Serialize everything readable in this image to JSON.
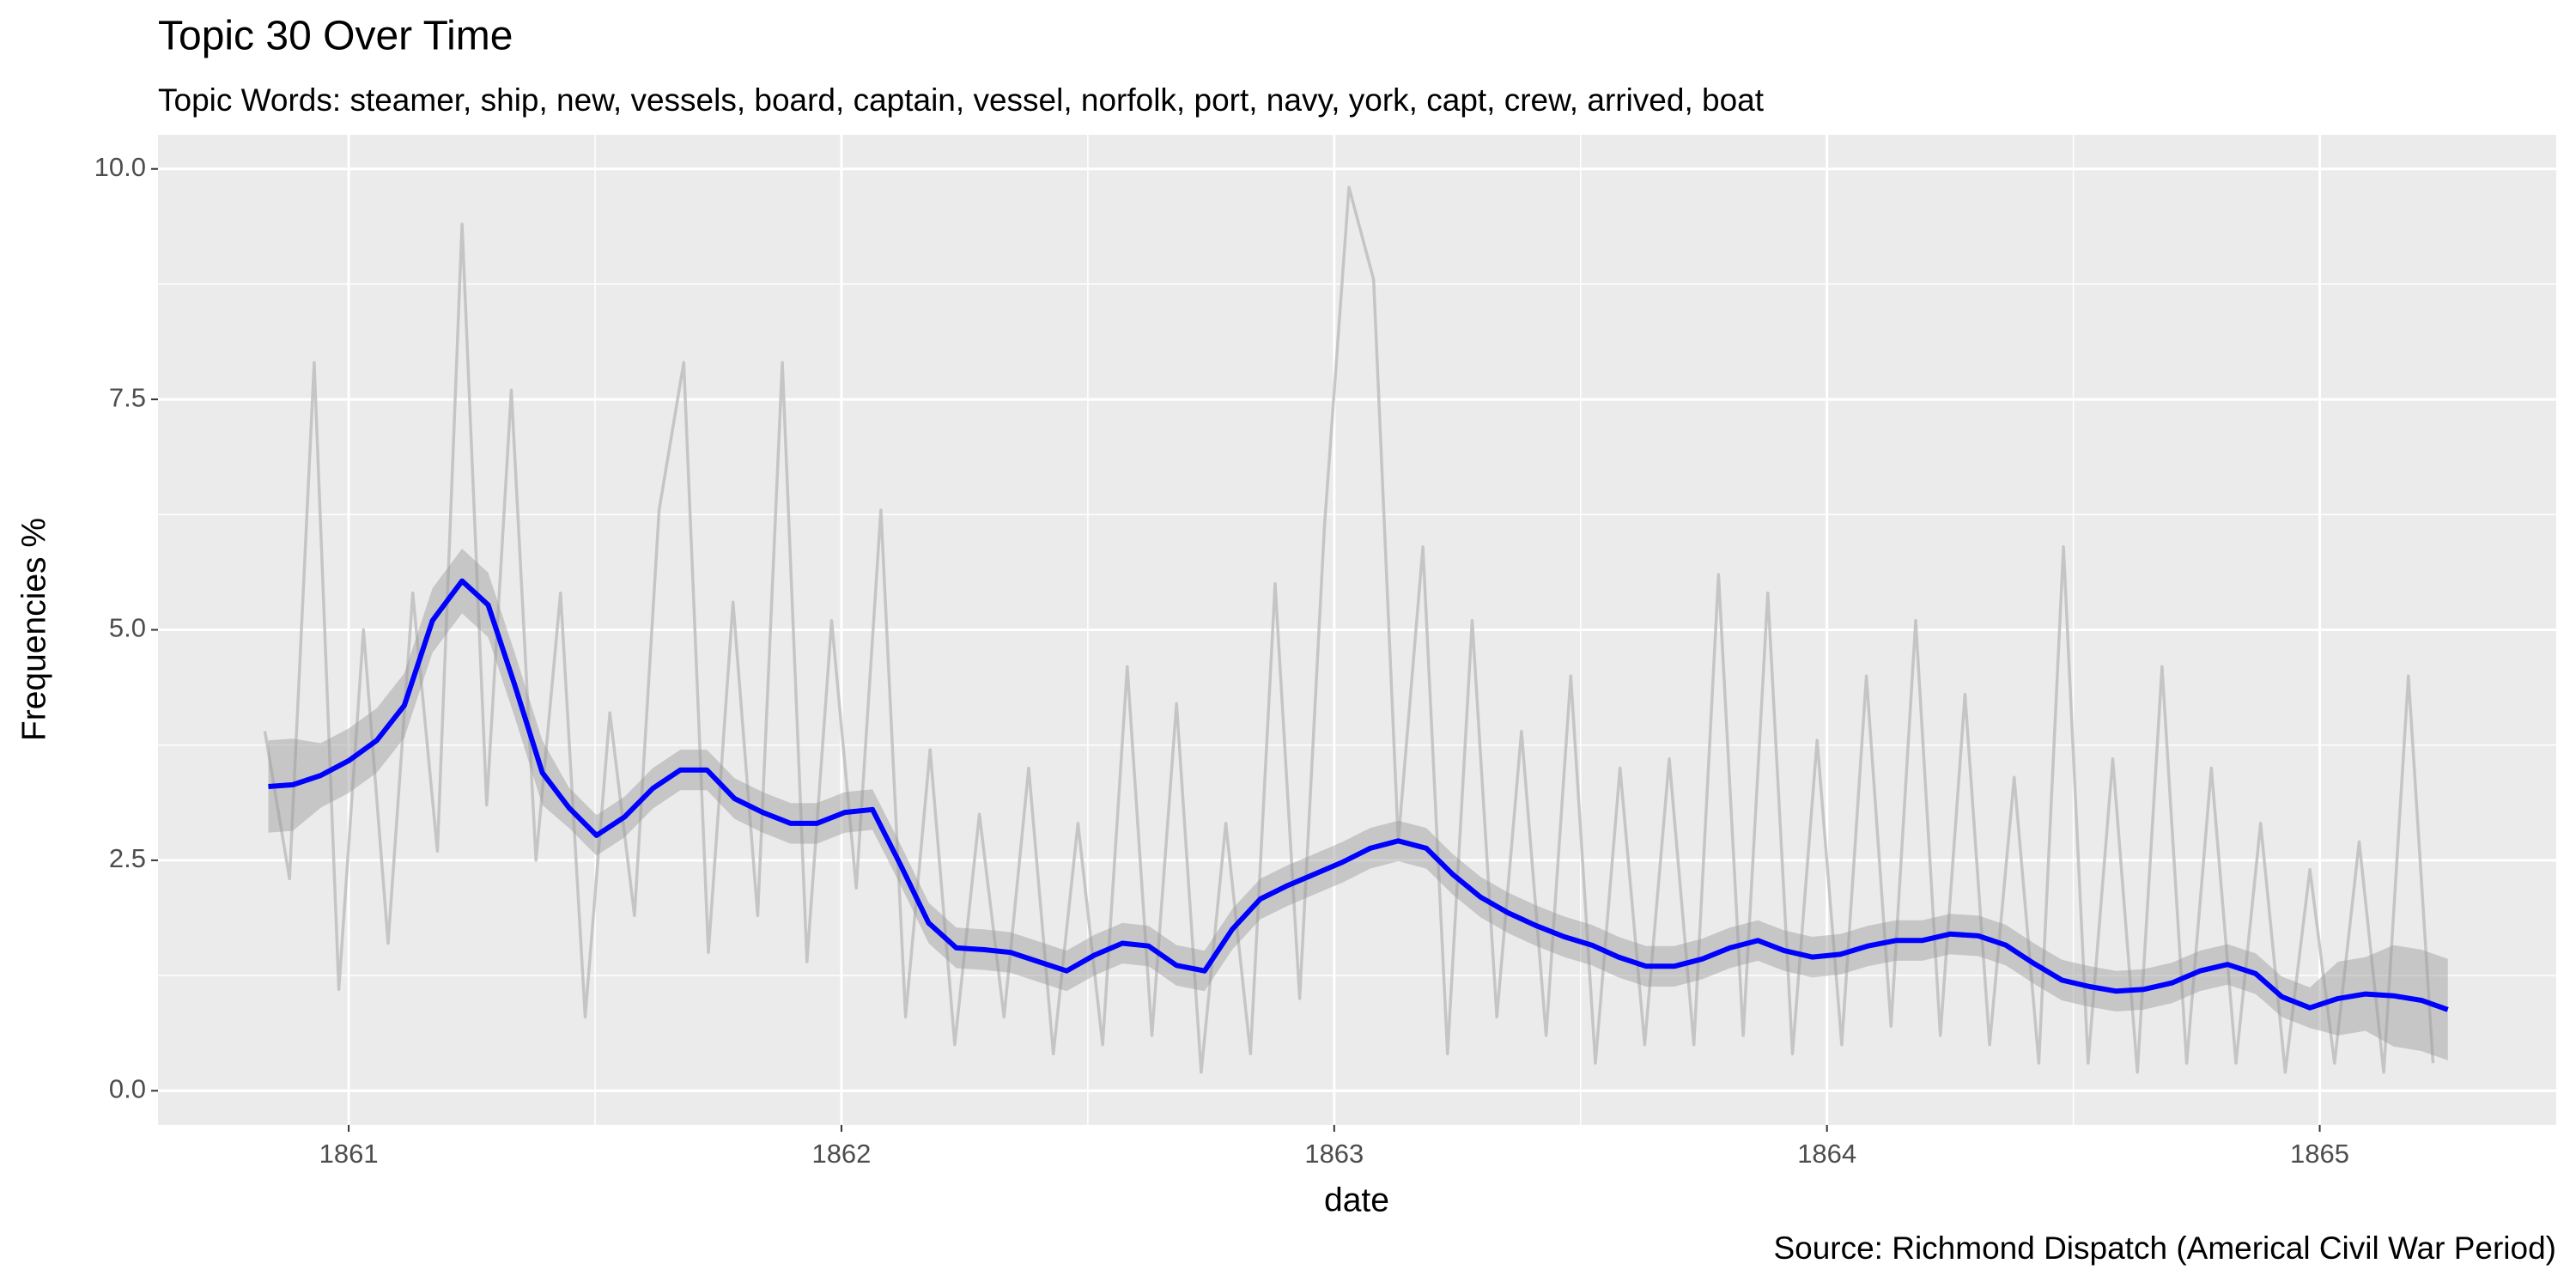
{
  "chart_data": {
    "type": "line",
    "title": "Topic 30 Over Time",
    "subtitle": "Topic Words: steamer, ship, new, vessels, board, captain, vessel, norfolk, port, navy, york, capt, crew, arrived, boat",
    "x_label": "date",
    "y_label": "Frequencies %",
    "caption": "Source: Richmond Dispatch (Americal Civil War Period)",
    "xlim": [
      1860.613,
      1865.48
    ],
    "xticks": [
      1861,
      1862,
      1863,
      1864,
      1865
    ],
    "x_minor_ticks": [
      1861.5,
      1862.5,
      1863.5,
      1864.5
    ],
    "ylim": [
      -0.37,
      10.37
    ],
    "yticks": [
      {
        "value": 0,
        "label": "0.0"
      },
      2.5,
      {
        "value": 5,
        "label": "5.0"
      },
      7.5,
      {
        "value": 10,
        "label": "10.0"
      }
    ],
    "y_minor_ticks": [
      1.25,
      3.75,
      6.25,
      8.75
    ],
    "grid": true,
    "series": [
      {
        "color": "#bebebe",
        "x": [
          1860.83,
          1860.88,
          1860.93,
          1860.98,
          1861.03,
          1861.08,
          1861.13,
          1861.18,
          1861.23,
          1861.28,
          1861.33,
          1861.38,
          1861.43,
          1861.48,
          1861.53,
          1861.58,
          1861.63,
          1861.68,
          1861.73,
          1861.78,
          1861.83,
          1861.88,
          1861.93,
          1861.98,
          1862.03,
          1862.08,
          1862.13,
          1862.18,
          1862.23,
          1862.28,
          1862.33,
          1862.38,
          1862.43,
          1862.48,
          1862.53,
          1862.58,
          1862.63,
          1862.68,
          1862.73,
          1862.78,
          1862.83,
          1862.88,
          1862.93,
          1862.98,
          1863.03,
          1863.08,
          1863.13,
          1863.18,
          1863.23,
          1863.28,
          1863.33,
          1863.38,
          1863.43,
          1863.48,
          1863.53,
          1863.58,
          1863.63,
          1863.68,
          1863.73,
          1863.78,
          1863.83,
          1863.88,
          1863.93,
          1863.98,
          1864.03,
          1864.08,
          1864.13,
          1864.18,
          1864.23,
          1864.28,
          1864.33,
          1864.38,
          1864.43,
          1864.48,
          1864.53,
          1864.58,
          1864.63,
          1864.68,
          1864.73,
          1864.78,
          1864.83,
          1864.88,
          1864.93,
          1864.98,
          1865.03,
          1865.08,
          1865.13,
          1865.18,
          1865.23
        ],
        "values": [
          3.9,
          2.3,
          7.9,
          1.1,
          5.0,
          1.6,
          5.4,
          2.6,
          9.4,
          3.1,
          7.6,
          2.5,
          5.4,
          0.8,
          4.1,
          1.9,
          6.3,
          7.9,
          1.5,
          5.3,
          1.9,
          7.9,
          1.4,
          5.1,
          2.2,
          6.3,
          0.8,
          3.7,
          0.5,
          3.0,
          0.8,
          3.5,
          0.4,
          2.9,
          0.5,
          4.6,
          0.6,
          4.2,
          0.2,
          2.9,
          0.4,
          5.5,
          1.0,
          6.1,
          9.8,
          8.8,
          2.7,
          5.9,
          0.4,
          5.1,
          0.8,
          3.9,
          0.6,
          4.5,
          0.3,
          3.5,
          0.5,
          3.6,
          0.5,
          5.6,
          0.6,
          5.4,
          0.4,
          3.8,
          0.5,
          4.5,
          0.7,
          5.1,
          0.6,
          4.3,
          0.5,
          3.4,
          0.3,
          5.9,
          0.3,
          3.6,
          0.2,
          4.6,
          0.3,
          3.5,
          0.3,
          2.9,
          0.2,
          2.4,
          0.3,
          2.7,
          0.2,
          4.5,
          0.3
        ]
      },
      {
        "color": "#0000ff",
        "band_color": "#999999",
        "x": [
          1860.837,
          1860.887,
          1860.943,
          1861.0,
          1861.057,
          1861.113,
          1861.17,
          1861.23,
          1861.283,
          1861.337,
          1861.393,
          1861.447,
          1861.503,
          1861.56,
          1861.617,
          1861.673,
          1861.727,
          1861.783,
          1861.84,
          1861.897,
          1861.95,
          1862.007,
          1862.063,
          1862.12,
          1862.177,
          1862.233,
          1862.29,
          1862.343,
          1862.4,
          1862.457,
          1862.513,
          1862.57,
          1862.623,
          1862.68,
          1862.737,
          1862.793,
          1862.85,
          1862.903,
          1862.96,
          1863.017,
          1863.073,
          1863.13,
          1863.187,
          1863.24,
          1863.297,
          1863.353,
          1863.41,
          1863.467,
          1863.523,
          1863.577,
          1863.633,
          1863.69,
          1863.747,
          1863.803,
          1863.86,
          1863.913,
          1863.97,
          1864.027,
          1864.083,
          1864.14,
          1864.193,
          1864.25,
          1864.307,
          1864.363,
          1864.42,
          1864.477,
          1864.533,
          1864.587,
          1864.643,
          1864.7,
          1864.757,
          1864.813,
          1864.87,
          1864.923,
          1864.98,
          1865.037,
          1865.093,
          1865.15,
          1865.207,
          1865.26
        ],
        "values": [
          3.3,
          3.32,
          3.42,
          3.58,
          3.8,
          4.18,
          5.1,
          5.53,
          5.27,
          4.4,
          3.45,
          3.07,
          2.77,
          2.97,
          3.28,
          3.48,
          3.48,
          3.17,
          3.02,
          2.9,
          2.9,
          3.02,
          3.05,
          2.45,
          1.82,
          1.55,
          1.53,
          1.5,
          1.4,
          1.3,
          1.47,
          1.6,
          1.57,
          1.36,
          1.3,
          1.75,
          2.08,
          2.22,
          2.35,
          2.48,
          2.63,
          2.71,
          2.63,
          2.35,
          2.1,
          1.93,
          1.79,
          1.67,
          1.58,
          1.45,
          1.35,
          1.35,
          1.43,
          1.55,
          1.63,
          1.52,
          1.45,
          1.48,
          1.57,
          1.63,
          1.63,
          1.7,
          1.68,
          1.58,
          1.38,
          1.2,
          1.13,
          1.08,
          1.1,
          1.17,
          1.3,
          1.37,
          1.27,
          1.02,
          0.9,
          1.0,
          1.05,
          1.03,
          0.98,
          0.88
        ],
        "lower": [
          2.8,
          2.82,
          3.07,
          3.23,
          3.45,
          3.83,
          4.75,
          5.18,
          4.92,
          4.05,
          3.1,
          2.85,
          2.55,
          2.75,
          3.06,
          3.26,
          3.26,
          2.95,
          2.8,
          2.68,
          2.68,
          2.8,
          2.83,
          2.23,
          1.6,
          1.33,
          1.31,
          1.28,
          1.18,
          1.08,
          1.25,
          1.38,
          1.35,
          1.14,
          1.08,
          1.53,
          1.86,
          2.0,
          2.13,
          2.26,
          2.41,
          2.49,
          2.41,
          2.13,
          1.88,
          1.71,
          1.57,
          1.45,
          1.36,
          1.23,
          1.13,
          1.13,
          1.21,
          1.33,
          1.41,
          1.3,
          1.23,
          1.26,
          1.35,
          1.41,
          1.41,
          1.48,
          1.46,
          1.36,
          1.16,
          0.98,
          0.91,
          0.86,
          0.88,
          0.95,
          1.08,
          1.15,
          1.05,
          0.8,
          0.68,
          0.6,
          0.65,
          0.48,
          0.43,
          0.33
        ],
        "upper": [
          3.8,
          3.82,
          3.77,
          3.93,
          4.15,
          4.53,
          5.45,
          5.88,
          5.62,
          4.75,
          3.8,
          3.29,
          2.99,
          3.19,
          3.5,
          3.7,
          3.7,
          3.39,
          3.24,
          3.12,
          3.12,
          3.24,
          3.27,
          2.67,
          2.04,
          1.77,
          1.75,
          1.72,
          1.62,
          1.52,
          1.69,
          1.82,
          1.79,
          1.58,
          1.52,
          1.97,
          2.3,
          2.44,
          2.57,
          2.7,
          2.85,
          2.93,
          2.85,
          2.57,
          2.32,
          2.15,
          2.01,
          1.89,
          1.8,
          1.67,
          1.57,
          1.57,
          1.65,
          1.77,
          1.85,
          1.74,
          1.67,
          1.7,
          1.79,
          1.85,
          1.85,
          1.92,
          1.9,
          1.8,
          1.6,
          1.42,
          1.35,
          1.3,
          1.32,
          1.39,
          1.52,
          1.59,
          1.49,
          1.24,
          1.12,
          1.4,
          1.45,
          1.58,
          1.53,
          1.43
        ]
      }
    ]
  }
}
